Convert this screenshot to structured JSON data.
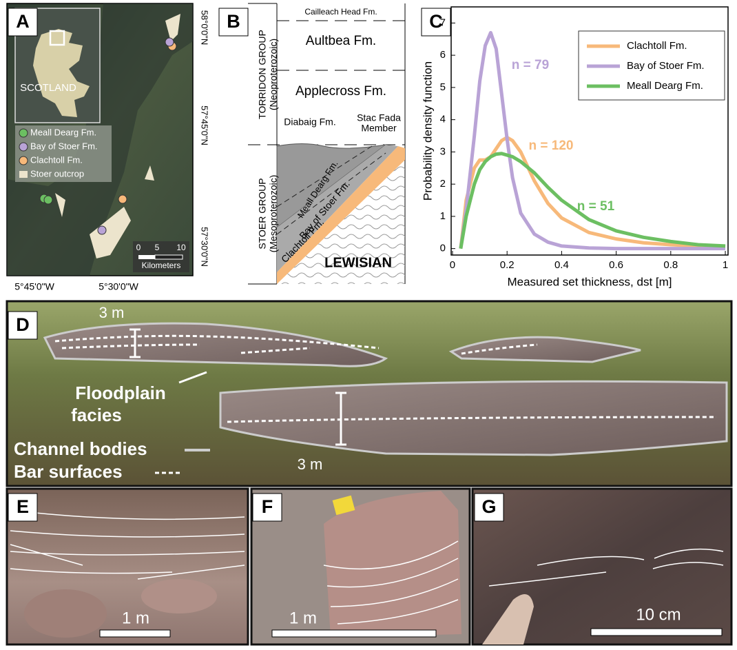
{
  "map": {
    "panel": "A",
    "inset_label": "SCOTLAND",
    "legend": [
      "Meall Dearg Fm.",
      "Bay of Stoer Fm.",
      "Clachtoll Fm.",
      "Stoer outcrop"
    ],
    "scale": [
      "0",
      "5",
      "10",
      "Kilometers"
    ],
    "lat_labels": [
      "58°0'0\"N",
      "57°45'0\"N",
      "57°30'0\"N"
    ],
    "lon_labels": [
      "5°45'0\"W",
      "5°30'0\"W"
    ]
  },
  "stratigraphy": {
    "panel": "B",
    "groups": [
      {
        "name": "TORRIDON GROUP",
        "age": "(Neoproterozoic)"
      },
      {
        "name": "STOER GROUP",
        "age": "(Mesoproterozoic)"
      }
    ],
    "units": [
      "Cailleach Head Fm.",
      "Aultbea Fm.",
      "Applecross Fm.",
      "Diabaig Fm.",
      "Stac Fada",
      "Member",
      "Meall Dearg Fm.",
      "Bay of Stoer Fm.",
      "Clachtoll Fm.",
      "LEWISIAN"
    ]
  },
  "chart_data": {
    "type": "line",
    "panel": "C",
    "x_label": "Measured set thickness, dst [m]",
    "y_label": "Probability density function",
    "x": [
      0.03,
      0.05,
      0.08,
      0.1,
      0.12,
      0.14,
      0.16,
      0.18,
      0.2,
      0.22,
      0.25,
      0.3,
      0.35,
      0.4,
      0.5,
      0.6,
      0.7,
      0.8,
      0.9,
      1.0
    ],
    "series": [
      {
        "name": "Clachtoll Fm.",
        "color": "#f7b97a",
        "values": [
          0,
          1.5,
          2.5,
          2.75,
          2.75,
          2.85,
          3.1,
          3.35,
          3.45,
          3.35,
          3.0,
          2.1,
          1.4,
          0.95,
          0.5,
          0.3,
          0.18,
          0.12,
          0.08,
          0.05
        ]
      },
      {
        "name": "Bay of Stoer Fm.",
        "color": "#b9a3d6",
        "values": [
          0,
          1.2,
          3.5,
          5.2,
          6.3,
          6.7,
          6.2,
          4.8,
          3.4,
          2.2,
          1.1,
          0.45,
          0.2,
          0.08,
          0.02,
          0,
          0,
          0,
          0,
          0
        ]
      },
      {
        "name": "Meall Dearg Fm.",
        "color": "#6cbf62",
        "values": [
          0,
          1.0,
          2.0,
          2.45,
          2.7,
          2.85,
          2.93,
          2.95,
          2.9,
          2.85,
          2.7,
          2.35,
          1.9,
          1.5,
          0.9,
          0.55,
          0.35,
          0.22,
          0.12,
          0.08
        ]
      }
    ],
    "annotations": [
      {
        "text": "n = 79",
        "color": "#b9a3d6"
      },
      {
        "text": "n = 120",
        "color": "#f7b97a"
      },
      {
        "text": "n = 51",
        "color": "#6cbf62"
      }
    ],
    "xlim": [
      -0.005,
      1.01
    ],
    "xticks": [
      0,
      0.2,
      0.4,
      0.6,
      0.8,
      1
    ],
    "ylim": [
      -0.2,
      7.5
    ],
    "yticks": [
      0,
      1,
      2,
      3,
      4,
      5,
      6,
      7
    ],
    "legend": "upper right"
  },
  "outcrop": {
    "panel": "D",
    "thickness_labels": [
      "3 m",
      "3 m"
    ],
    "facies": [
      "Floodplain",
      "facies"
    ],
    "legend": [
      "Channel bodies",
      "Bar surfaces"
    ]
  },
  "photos": [
    {
      "panel": "E",
      "scale": "1 m"
    },
    {
      "panel": "F",
      "scale": "1 m"
    },
    {
      "panel": "G",
      "scale": "10 cm"
    }
  ]
}
